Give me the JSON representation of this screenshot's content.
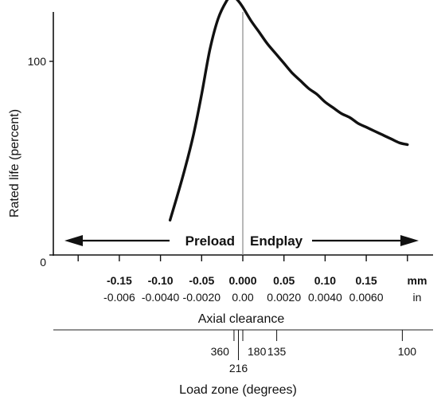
{
  "chart_data": {
    "type": "line",
    "title": "",
    "ylabel": "Rated life (percent)",
    "xlabel": "Axial clearance",
    "secondary_xlabel": "Load zone (degrees)",
    "y_ticks": [
      0,
      100
    ],
    "ylim": [
      0,
      167
    ],
    "xlim_mm": [
      -0.215,
      0.2
    ],
    "grid": false,
    "x_ticks_mm": [
      "-0.15",
      "-0.10",
      "-0.05",
      "0.000",
      "0.05",
      "0.10",
      "0.15"
    ],
    "x_ticks_mm_values": [
      -0.15,
      -0.1,
      -0.05,
      0.0,
      0.05,
      0.1,
      0.15
    ],
    "x_unit_mm": "mm",
    "x_ticks_in": [
      "-0.006",
      "-0.0040",
      "-0.0020",
      "0.00",
      "0.0020",
      "0.0040",
      "0.0060"
    ],
    "x_unit_in": "in",
    "load_zone_ticks": [
      {
        "label": "360",
        "clearance_mm": -0.0107
      },
      {
        "label": "216",
        "clearance_mm": -0.0053
      },
      {
        "label": "180",
        "clearance_mm": 0.0
      },
      {
        "label": "135",
        "clearance_mm": 0.0412
      },
      {
        "label": "100",
        "clearance_mm": 0.1938
      }
    ],
    "annotations": {
      "preload": "Preload",
      "endplay": "Endplay"
    },
    "series": [
      {
        "x": [
          -0.0884,
          -0.08,
          -0.07,
          -0.06,
          -0.05,
          -0.04,
          -0.03,
          -0.02,
          -0.015,
          -0.01,
          -0.005,
          0.0,
          0.01,
          0.02,
          0.03,
          0.04,
          0.05,
          0.06,
          0.07,
          0.08,
          0.09,
          0.1,
          0.11,
          0.12,
          0.13,
          0.14,
          0.15,
          0.16,
          0.17,
          0.18,
          0.19,
          0.2
        ],
        "y": [
          18,
          30,
          45,
          62,
          83,
          106,
          122,
          131,
          133,
          133,
          131,
          128,
          121,
          115,
          109,
          104,
          99,
          94,
          90,
          86,
          83,
          79,
          76,
          73,
          71,
          68,
          66,
          64,
          62,
          60,
          58,
          57
        ]
      }
    ]
  }
}
